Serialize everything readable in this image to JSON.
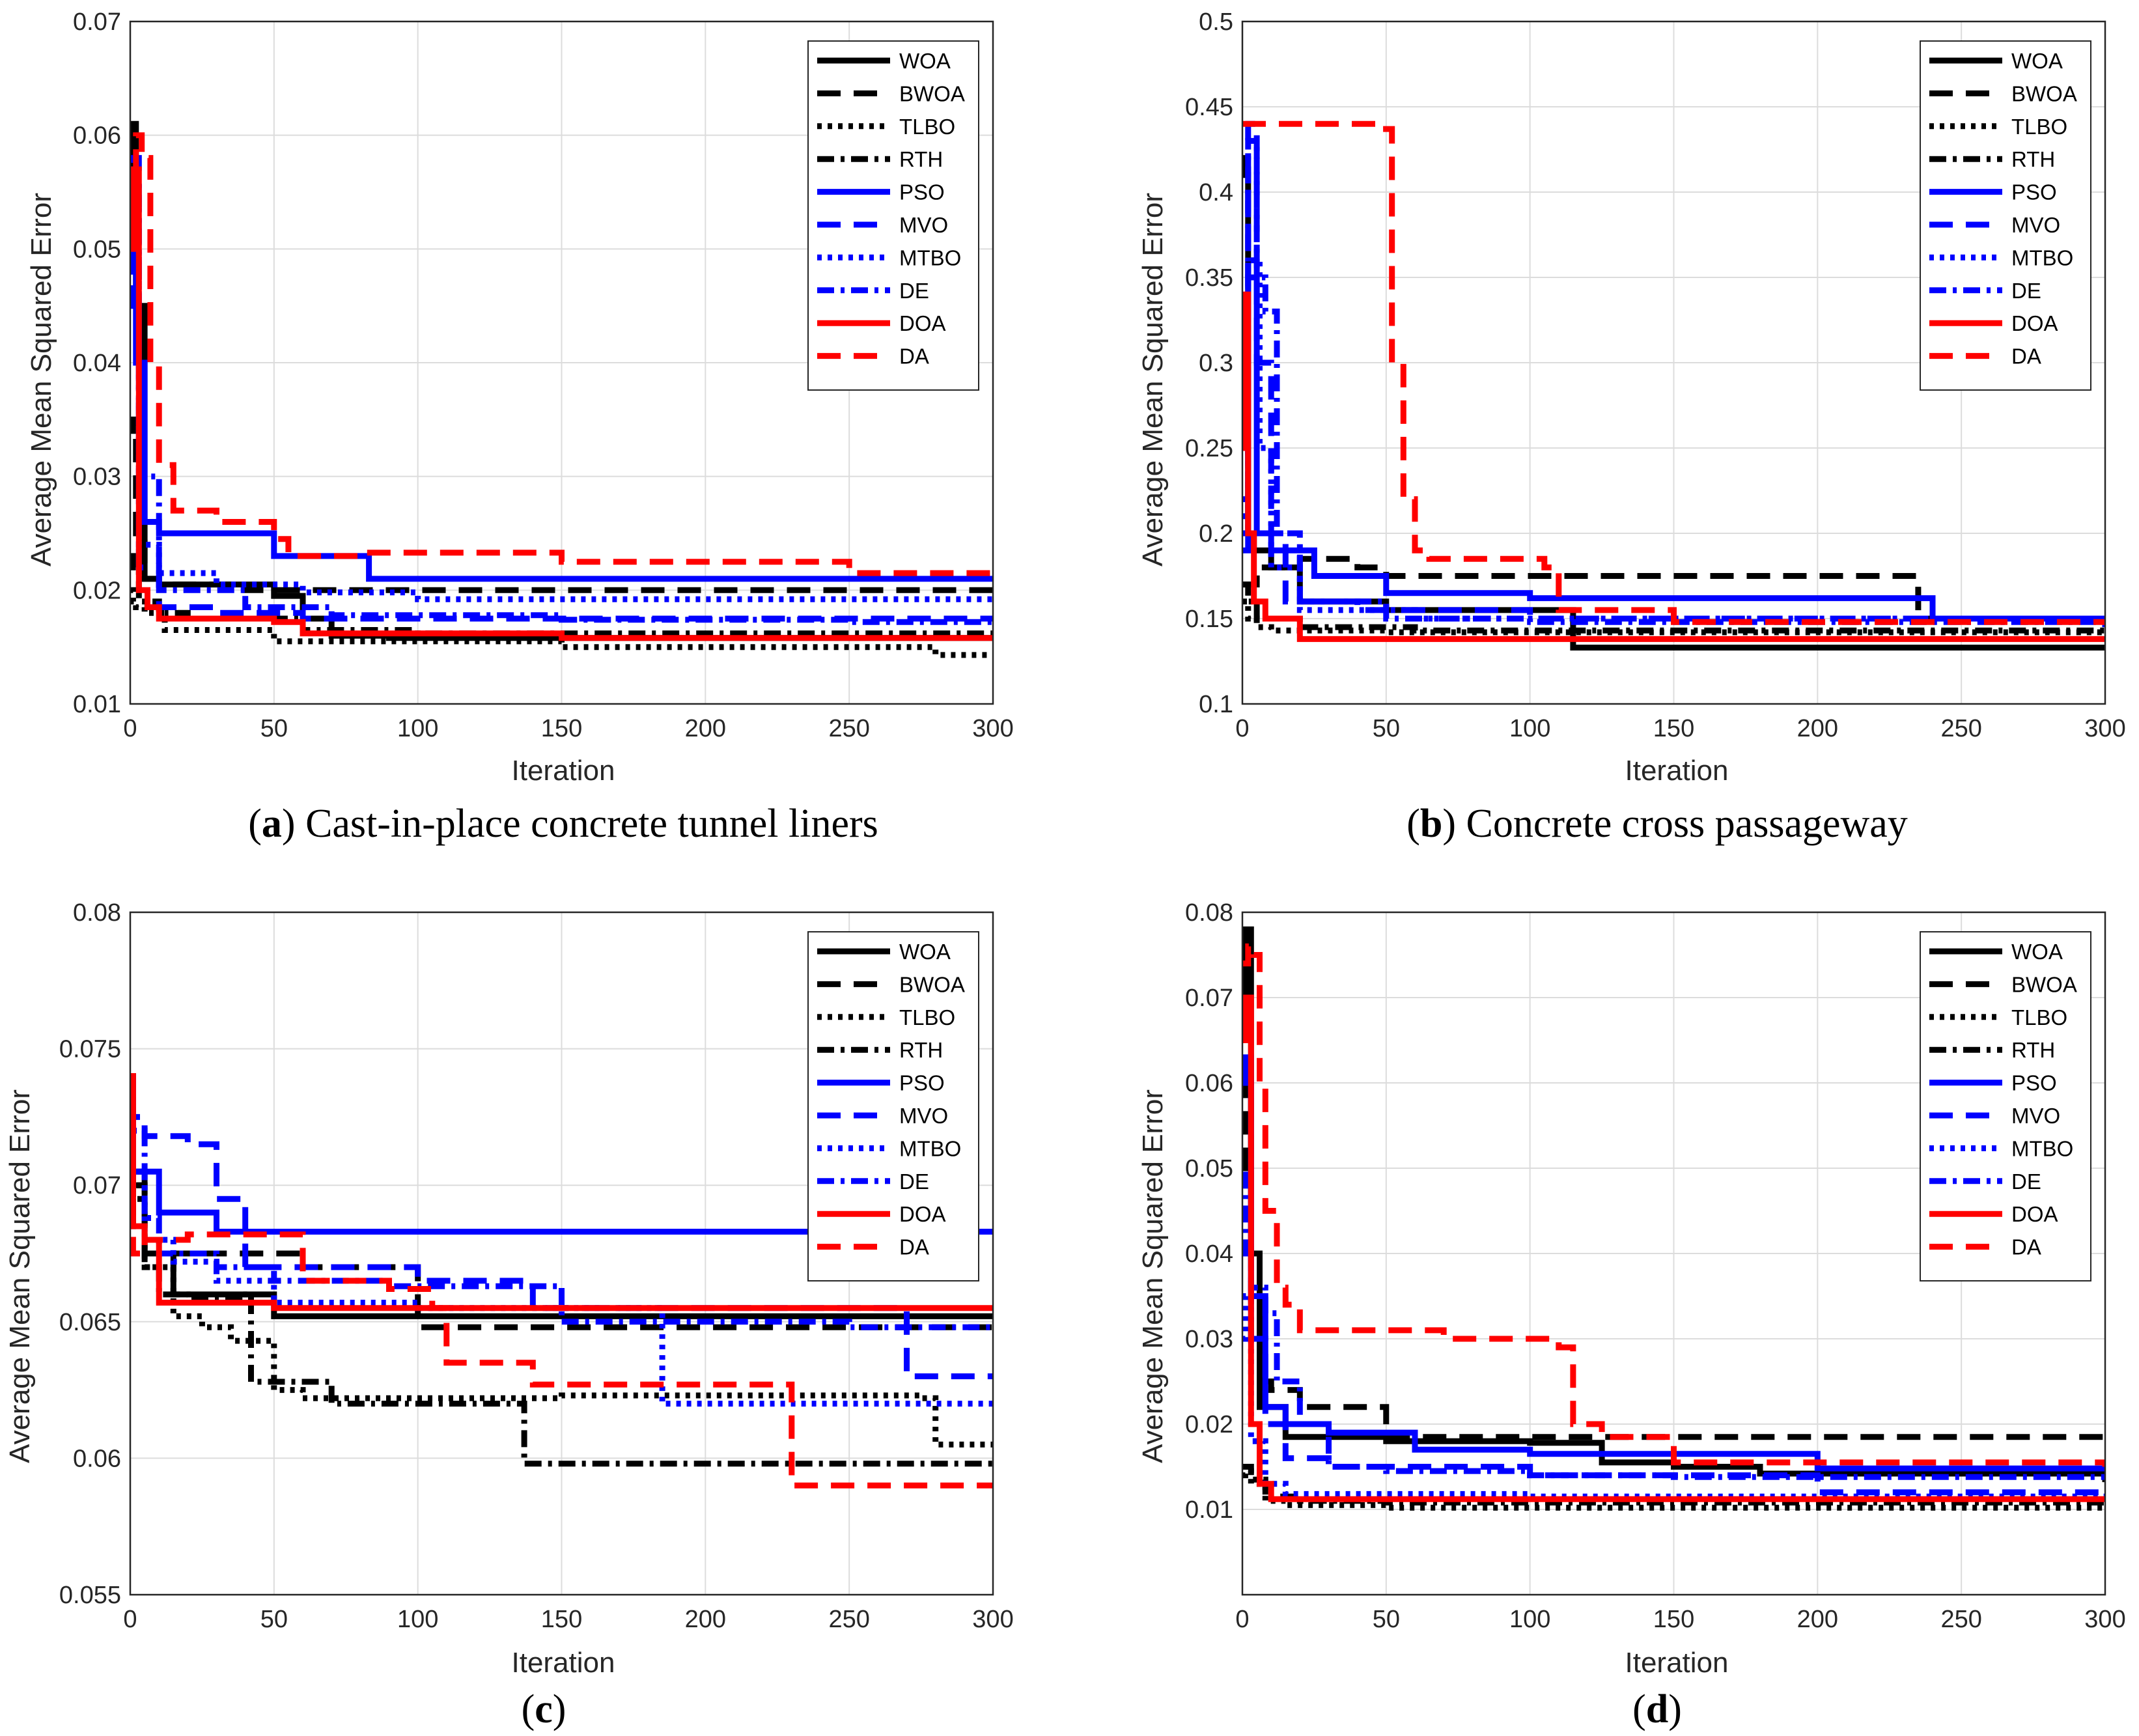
{
  "figure": {
    "colors": {
      "WOA": "#000000",
      "BWOA": "#000000",
      "TLBO": "#000000",
      "RTH": "#000000",
      "PSO": "#0000ff",
      "MVO": "#0000ff",
      "MTBO": "#0000ff",
      "DE": "#0000ff",
      "DOA": "#ff0000",
      "DA": "#ff0000"
    }
  },
  "chart_data": [
    {
      "type": "line",
      "panel": "a",
      "caption_letter": "a",
      "caption_text": " Cast-in-place concrete tunnel liners",
      "xlabel": "Iteration",
      "ylabel": "Average Mean Squared Error",
      "xlim": [
        0,
        300
      ],
      "ylim": [
        0.01,
        0.07
      ],
      "xticks": [
        "0",
        "50",
        "100",
        "150",
        "200",
        "250",
        "300"
      ],
      "yticks": [
        "0.01",
        "0.02",
        "0.03",
        "0.04",
        "0.05",
        "0.06",
        "0.07"
      ],
      "legend": "top-right",
      "series": [
        {
          "name": "WOA",
          "x": [
            0,
            1,
            2,
            5,
            10,
            30,
            50,
            60,
            70,
            90,
            300
          ],
          "y": [
            0.052,
            0.061,
            0.045,
            0.021,
            0.0205,
            0.0205,
            0.0195,
            0.0175,
            0.016,
            0.0158,
            0.0156
          ]
        },
        {
          "name": "BWOA",
          "x": [
            0,
            1,
            2,
            5,
            10,
            40,
            300
          ],
          "y": [
            0.034,
            0.035,
            0.025,
            0.021,
            0.0205,
            0.02,
            0.02
          ]
        },
        {
          "name": "TLBO",
          "x": [
            0,
            1,
            2,
            5,
            12,
            50,
            150,
            280,
            300
          ],
          "y": [
            0.02,
            0.019,
            0.0185,
            0.018,
            0.0165,
            0.0155,
            0.015,
            0.0143,
            0.0143
          ]
        },
        {
          "name": "RTH",
          "x": [
            0,
            1,
            3,
            10,
            20,
            60,
            100,
            200,
            300
          ],
          "y": [
            0.023,
            0.022,
            0.019,
            0.018,
            0.0175,
            0.0165,
            0.0162,
            0.0162,
            0.0162
          ]
        },
        {
          "name": "PSO",
          "x": [
            0,
            1,
            2,
            5,
            10,
            20,
            50,
            80,
            83,
            300
          ],
          "y": [
            0.05,
            0.057,
            0.04,
            0.026,
            0.025,
            0.025,
            0.023,
            0.023,
            0.021,
            0.021
          ]
        },
        {
          "name": "MVO",
          "x": [
            0,
            1,
            3,
            10,
            30,
            60,
            80,
            300
          ],
          "y": [
            0.045,
            0.058,
            0.022,
            0.0185,
            0.018,
            0.0175,
            0.0175,
            0.0175
          ]
        },
        {
          "name": "MTBO",
          "x": [
            0,
            1,
            3,
            10,
            30,
            60,
            100,
            300
          ],
          "y": [
            0.048,
            0.055,
            0.024,
            0.0215,
            0.0205,
            0.0198,
            0.0192,
            0.0192
          ]
        },
        {
          "name": "DE",
          "x": [
            0,
            1,
            3,
            10,
            40,
            70,
            150,
            250,
            300
          ],
          "y": [
            0.055,
            0.056,
            0.03,
            0.02,
            0.0185,
            0.0178,
            0.0174,
            0.0172,
            0.0172
          ]
        },
        {
          "name": "DOA",
          "x": [
            0,
            1,
            3,
            6,
            10,
            50,
            60,
            150,
            300
          ],
          "y": [
            0.05,
            0.057,
            0.02,
            0.0185,
            0.0175,
            0.0172,
            0.0162,
            0.0158,
            0.0156
          ]
        },
        {
          "name": "DA",
          "x": [
            0,
            2,
            4,
            7,
            10,
            15,
            30,
            50,
            55,
            80,
            150,
            250,
            300
          ],
          "y": [
            0.054,
            0.06,
            0.058,
            0.04,
            0.031,
            0.027,
            0.026,
            0.0245,
            0.023,
            0.0233,
            0.0225,
            0.0215,
            0.0215
          ]
        }
      ]
    },
    {
      "type": "line",
      "panel": "b",
      "caption_letter": "b",
      "caption_text": " Concrete cross passageway",
      "xlabel": "Iteration",
      "ylabel": "Average Mean Squared Error",
      "xlim": [
        0,
        300
      ],
      "ylim": [
        0.1,
        0.5
      ],
      "xticks": [
        "0",
        "50",
        "100",
        "150",
        "200",
        "250",
        "300"
      ],
      "yticks": [
        "0.1",
        "0.15",
        "0.2",
        "0.25",
        "0.3",
        "0.35",
        "0.4",
        "0.45",
        "0.5"
      ],
      "legend": "top-right",
      "series": [
        {
          "name": "WOA",
          "x": [
            0,
            1,
            2,
            4,
            10,
            20,
            50,
            115,
            300
          ],
          "y": [
            0.42,
            0.41,
            0.2,
            0.19,
            0.18,
            0.16,
            0.155,
            0.133,
            0.133
          ]
        },
        {
          "name": "BWOA",
          "x": [
            0,
            2,
            5,
            20,
            40,
            50,
            230,
            235,
            300
          ],
          "y": [
            0.17,
            0.17,
            0.18,
            0.185,
            0.18,
            0.175,
            0.175,
            0.15,
            0.15
          ]
        },
        {
          "name": "TLBO",
          "x": [
            0,
            2,
            5,
            10,
            50,
            300
          ],
          "y": [
            0.16,
            0.15,
            0.145,
            0.143,
            0.142,
            0.142
          ]
        },
        {
          "name": "RTH",
          "x": [
            0,
            2,
            5,
            20,
            60,
            300
          ],
          "y": [
            0.17,
            0.16,
            0.15,
            0.145,
            0.143,
            0.143
          ]
        },
        {
          "name": "PSO",
          "x": [
            0,
            2,
            5,
            10,
            25,
            50,
            100,
            200,
            240,
            300
          ],
          "y": [
            0.19,
            0.35,
            0.2,
            0.19,
            0.175,
            0.165,
            0.162,
            0.162,
            0.15,
            0.15
          ]
        },
        {
          "name": "MVO",
          "x": [
            0,
            2,
            5,
            10,
            15,
            40,
            100,
            300
          ],
          "y": [
            0.22,
            0.44,
            0.3,
            0.2,
            0.16,
            0.155,
            0.15,
            0.145
          ]
        },
        {
          "name": "MTBO",
          "x": [
            0,
            2,
            6,
            10,
            20,
            60,
            300
          ],
          "y": [
            0.2,
            0.36,
            0.25,
            0.18,
            0.155,
            0.15,
            0.145
          ]
        },
        {
          "name": "DE",
          "x": [
            0,
            2,
            5,
            8,
            12,
            20,
            50,
            100,
            300
          ],
          "y": [
            0.21,
            0.43,
            0.35,
            0.33,
            0.2,
            0.16,
            0.15,
            0.148,
            0.145
          ]
        },
        {
          "name": "DOA",
          "x": [
            0,
            1,
            2,
            4,
            8,
            20,
            300
          ],
          "y": [
            0.25,
            0.34,
            0.2,
            0.16,
            0.15,
            0.138,
            0.138
          ]
        },
        {
          "name": "DA",
          "x": [
            0,
            1,
            2,
            48,
            52,
            56,
            60,
            65,
            105,
            110,
            150,
            300
          ],
          "y": [
            0.44,
            0.44,
            0.44,
            0.437,
            0.3,
            0.22,
            0.19,
            0.185,
            0.18,
            0.155,
            0.148,
            0.148
          ]
        }
      ]
    },
    {
      "type": "line",
      "panel": "c",
      "caption_letter": "c",
      "caption_text": "",
      "xlabel": "Iteration",
      "ylabel": "Average Mean Squared Error",
      "xlim": [
        0,
        300
      ],
      "ylim": [
        0.055,
        0.08
      ],
      "xticks": [
        "0",
        "50",
        "100",
        "150",
        "200",
        "250",
        "300"
      ],
      "yticks": [
        "0.055",
        "0.06",
        "0.065",
        "0.07",
        "0.075",
        "0.08"
      ],
      "legend": "top-right",
      "series": [
        {
          "name": "WOA",
          "x": [
            0,
            1,
            5,
            15,
            30,
            45,
            50,
            300
          ],
          "y": [
            0.07,
            0.0705,
            0.0675,
            0.066,
            0.066,
            0.066,
            0.0652,
            0.0652
          ]
        },
        {
          "name": "BWOA",
          "x": [
            0,
            1,
            5,
            20,
            50,
            60,
            90,
            100,
            300
          ],
          "y": [
            0.0685,
            0.07,
            0.0675,
            0.0675,
            0.0675,
            0.067,
            0.067,
            0.0648,
            0.0648
          ]
        },
        {
          "name": "TLBO",
          "x": [
            0,
            1,
            5,
            15,
            25,
            35,
            50,
            60,
            150,
            275,
            280,
            300
          ],
          "y": [
            0.07,
            0.0695,
            0.067,
            0.0652,
            0.0648,
            0.0643,
            0.0625,
            0.0622,
            0.0623,
            0.0622,
            0.0605,
            0.0605
          ]
        },
        {
          "name": "RTH",
          "x": [
            0,
            1,
            5,
            10,
            20,
            38,
            42,
            70,
            100,
            134,
            137,
            300
          ],
          "y": [
            0.069,
            0.07,
            0.067,
            0.066,
            0.0658,
            0.066,
            0.0628,
            0.062,
            0.062,
            0.062,
            0.0598,
            0.0598
          ]
        },
        {
          "name": "PSO",
          "x": [
            0,
            1,
            5,
            10,
            20,
            30,
            300
          ],
          "y": [
            0.074,
            0.0705,
            0.0705,
            0.069,
            0.069,
            0.0683,
            0.0683
          ]
        },
        {
          "name": "MVO",
          "x": [
            0,
            1,
            5,
            20,
            30,
            40,
            100,
            140,
            200,
            265,
            270,
            300
          ],
          "y": [
            0.072,
            0.0725,
            0.0718,
            0.0715,
            0.0695,
            0.067,
            0.0665,
            0.0655,
            0.0655,
            0.0655,
            0.063,
            0.063
          ]
        },
        {
          "name": "MTBO",
          "x": [
            0,
            1,
            5,
            15,
            30,
            50,
            100,
            180,
            185,
            300
          ],
          "y": [
            0.07,
            0.0705,
            0.068,
            0.0672,
            0.0665,
            0.0657,
            0.0655,
            0.0655,
            0.062,
            0.062
          ]
        },
        {
          "name": "DE",
          "x": [
            0,
            1,
            5,
            10,
            30,
            50,
            90,
            100,
            150,
            250,
            300
          ],
          "y": [
            0.074,
            0.072,
            0.0688,
            0.0675,
            0.067,
            0.0665,
            0.0663,
            0.0663,
            0.065,
            0.0648,
            0.0648
          ]
        },
        {
          "name": "DOA",
          "x": [
            0,
            1,
            5,
            10,
            50,
            300
          ],
          "y": [
            0.074,
            0.0685,
            0.068,
            0.0657,
            0.0655,
            0.0655
          ]
        },
        {
          "name": "DA",
          "x": [
            0,
            1,
            5,
            20,
            60,
            90,
            105,
            110,
            135,
            140,
            225,
            230,
            300
          ],
          "y": [
            0.068,
            0.0675,
            0.068,
            0.0682,
            0.0665,
            0.0662,
            0.0655,
            0.0635,
            0.0635,
            0.0627,
            0.0627,
            0.059,
            0.059
          ]
        }
      ]
    },
    {
      "type": "line",
      "panel": "d",
      "caption_letter": "d",
      "caption_text": "",
      "xlabel": "Iteration",
      "ylabel": "Average Mean Squared Error",
      "xlim": [
        0,
        300
      ],
      "ylim": [
        0,
        0.08
      ],
      "xticks": [
        "0",
        "50",
        "100",
        "150",
        "200",
        "250",
        "300"
      ],
      "yticks": [
        "0.01",
        "0.02",
        "0.03",
        "0.04",
        "0.05",
        "0.06",
        "0.07",
        "0.08"
      ],
      "legend": "top-right",
      "series": [
        {
          "name": "WOA",
          "x": [
            0,
            1,
            3,
            6,
            15,
            50,
            100,
            125,
            150,
            180,
            300
          ],
          "y": [
            0.07,
            0.078,
            0.04,
            0.022,
            0.0185,
            0.018,
            0.0178,
            0.0155,
            0.015,
            0.0142,
            0.0132
          ]
        },
        {
          "name": "BWOA",
          "x": [
            0,
            1,
            3,
            6,
            10,
            20,
            45,
            50,
            300
          ],
          "y": [
            0.05,
            0.06,
            0.03,
            0.025,
            0.024,
            0.022,
            0.022,
            0.0185,
            0.0185
          ]
        },
        {
          "name": "TLBO",
          "x": [
            0,
            1,
            3,
            8,
            15,
            50,
            300
          ],
          "y": [
            0.014,
            0.0145,
            0.013,
            0.011,
            0.0105,
            0.0102,
            0.01
          ]
        },
        {
          "name": "RTH",
          "x": [
            0,
            1,
            3,
            8,
            20,
            50,
            300
          ],
          "y": [
            0.015,
            0.015,
            0.0135,
            0.0115,
            0.011,
            0.0108,
            0.0108
          ]
        },
        {
          "name": "PSO",
          "x": [
            0,
            1,
            3,
            8,
            15,
            30,
            60,
            100,
            200,
            300
          ],
          "y": [
            0.06,
            0.063,
            0.035,
            0.022,
            0.02,
            0.019,
            0.017,
            0.0165,
            0.0148,
            0.0148
          ]
        },
        {
          "name": "MVO",
          "x": [
            0,
            1,
            3,
            8,
            15,
            30,
            100,
            200,
            300
          ],
          "y": [
            0.06,
            0.062,
            0.03,
            0.02,
            0.016,
            0.015,
            0.014,
            0.012,
            0.012
          ]
        },
        {
          "name": "MTBO",
          "x": [
            0,
            1,
            3,
            8,
            15,
            100,
            300
          ],
          "y": [
            0.03,
            0.035,
            0.018,
            0.013,
            0.0118,
            0.0115,
            0.0115
          ]
        },
        {
          "name": "DE",
          "x": [
            0,
            1,
            3,
            8,
            12,
            20,
            30,
            50,
            100,
            150,
            300
          ],
          "y": [
            0.04,
            0.05,
            0.036,
            0.033,
            0.025,
            0.02,
            0.015,
            0.0145,
            0.014,
            0.0138,
            0.0138
          ]
        },
        {
          "name": "DOA",
          "x": [
            0,
            1,
            3,
            6,
            10,
            300
          ],
          "y": [
            0.065,
            0.07,
            0.02,
            0.013,
            0.0112,
            0.0112
          ]
        },
        {
          "name": "DA",
          "x": [
            0,
            2,
            4,
            6,
            8,
            12,
            15,
            20,
            70,
            110,
            115,
            125,
            150,
            300
          ],
          "y": [
            0.074,
            0.076,
            0.075,
            0.06,
            0.045,
            0.036,
            0.034,
            0.031,
            0.03,
            0.029,
            0.02,
            0.0185,
            0.0155,
            0.015
          ]
        }
      ]
    }
  ]
}
